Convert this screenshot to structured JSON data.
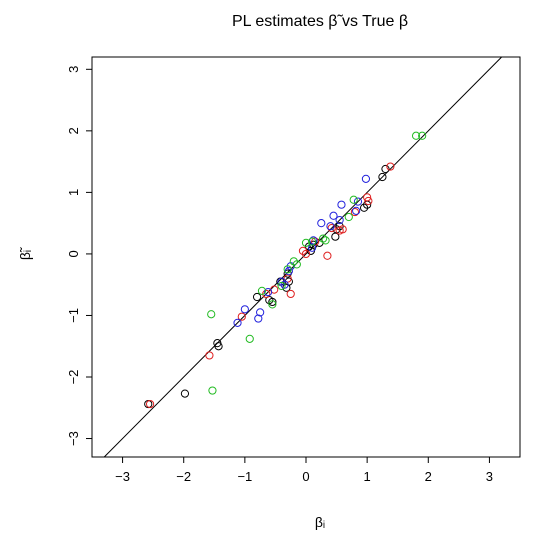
{
  "chart_data": {
    "type": "scatter",
    "title": "PL estimates β̃ vs True β",
    "xlabel": "βᵢ",
    "ylabel": "β̃ᵢ",
    "xlim": [
      -3.5,
      3.5
    ],
    "ylim": [
      -3.3,
      3.2
    ],
    "xticks": [
      -3,
      -2,
      -1,
      0,
      1,
      2,
      3
    ],
    "yticks": [
      -3,
      -2,
      -1,
      0,
      1,
      2,
      3
    ],
    "x_tick_labels": [
      "−3",
      "−2",
      "−1",
      "0",
      "1",
      "2",
      "3"
    ],
    "y_tick_labels": [
      "−3",
      "−2",
      "−1",
      "0",
      "1",
      "2",
      "3"
    ],
    "reference_line": {
      "slope": 1,
      "intercept": 0
    },
    "grid": false,
    "series": [
      {
        "color": "#000000",
        "points": [
          [
            -2.58,
            -2.44
          ],
          [
            -1.98,
            -2.27
          ],
          [
            -1.45,
            -1.45
          ],
          [
            -1.43,
            -1.5
          ],
          [
            -0.8,
            -0.7
          ],
          [
            -0.6,
            -0.75
          ],
          [
            -0.55,
            -0.78
          ],
          [
            -0.42,
            -0.45
          ],
          [
            -0.3,
            -0.32
          ],
          [
            -0.28,
            -0.45
          ],
          [
            -0.32,
            -0.55
          ],
          [
            0.05,
            0.12
          ],
          [
            0.08,
            0.05
          ],
          [
            0.12,
            0.15
          ],
          [
            0.22,
            0.18
          ],
          [
            0.48,
            0.28
          ],
          [
            0.5,
            0.4
          ],
          [
            0.55,
            0.45
          ],
          [
            0.95,
            0.75
          ],
          [
            1.0,
            0.8
          ],
          [
            1.25,
            1.25
          ],
          [
            1.3,
            1.38
          ]
        ]
      },
      {
        "color": "#df1f1f",
        "points": [
          [
            -2.55,
            -2.44
          ],
          [
            -1.58,
            -1.65
          ],
          [
            -1.05,
            -1.02
          ],
          [
            -0.65,
            -0.65
          ],
          [
            -0.52,
            -0.58
          ],
          [
            -0.3,
            -0.4
          ],
          [
            -0.25,
            -0.65
          ],
          [
            -0.05,
            0.05
          ],
          [
            0.0,
            0.0
          ],
          [
            0.15,
            0.2
          ],
          [
            0.35,
            -0.03
          ],
          [
            0.42,
            0.42
          ],
          [
            0.55,
            0.38
          ],
          [
            0.6,
            0.4
          ],
          [
            0.8,
            0.68
          ],
          [
            1.0,
            0.92
          ],
          [
            1.02,
            0.86
          ],
          [
            1.38,
            1.42
          ]
        ]
      },
      {
        "color": "#2222dd",
        "points": [
          [
            -1.12,
            -1.12
          ],
          [
            -1.0,
            -0.9
          ],
          [
            -0.78,
            -1.05
          ],
          [
            -0.75,
            -0.95
          ],
          [
            -0.62,
            -0.62
          ],
          [
            -0.4,
            -0.45
          ],
          [
            -0.35,
            -0.5
          ],
          [
            -0.28,
            -0.28
          ],
          [
            -0.25,
            -0.2
          ],
          [
            0.1,
            0.1
          ],
          [
            0.12,
            0.22
          ],
          [
            0.25,
            0.5
          ],
          [
            0.4,
            0.45
          ],
          [
            0.45,
            0.62
          ],
          [
            0.55,
            0.55
          ],
          [
            0.58,
            0.8
          ],
          [
            0.82,
            0.7
          ],
          [
            0.85,
            0.85
          ],
          [
            0.98,
            1.22
          ]
        ]
      },
      {
        "color": "#22bb22",
        "points": [
          [
            -1.55,
            -0.98
          ],
          [
            -1.53,
            -2.22
          ],
          [
            -0.92,
            -1.38
          ],
          [
            -0.72,
            -0.6
          ],
          [
            -0.55,
            -0.82
          ],
          [
            -0.4,
            -0.52
          ],
          [
            -0.3,
            -0.25
          ],
          [
            -0.2,
            -0.12
          ],
          [
            -0.15,
            -0.17
          ],
          [
            0.0,
            0.18
          ],
          [
            0.1,
            0.2
          ],
          [
            0.28,
            0.25
          ],
          [
            0.32,
            0.22
          ],
          [
            0.7,
            0.6
          ],
          [
            0.78,
            0.88
          ],
          [
            1.8,
            1.92
          ],
          [
            1.9,
            1.92
          ]
        ]
      }
    ]
  }
}
